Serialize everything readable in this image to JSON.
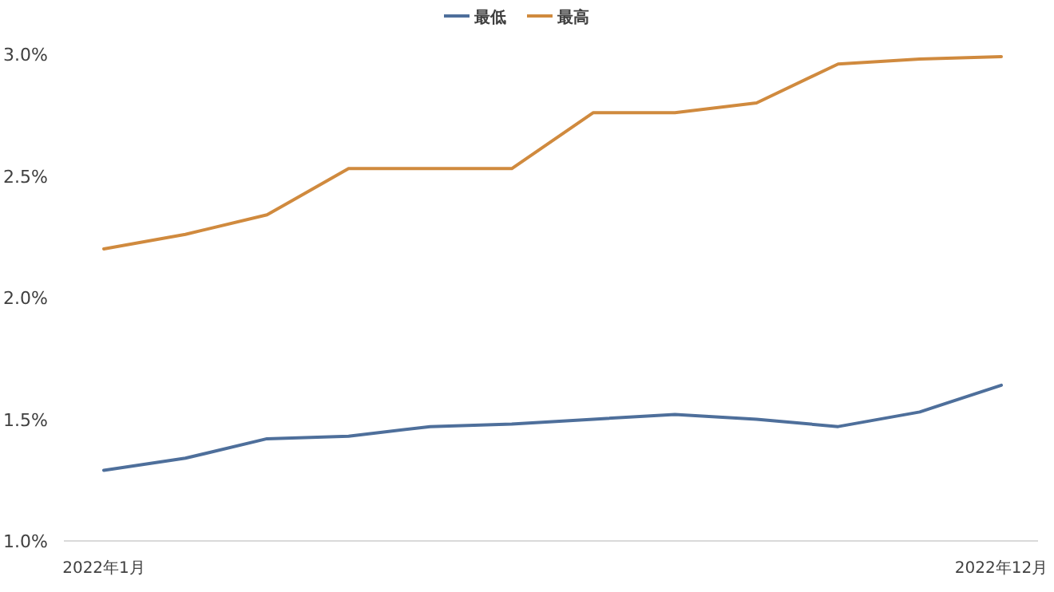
{
  "chart_data": {
    "type": "line",
    "categories": [
      "2022年1月",
      null,
      null,
      null,
      null,
      null,
      null,
      null,
      null,
      null,
      null,
      "2022年12月"
    ],
    "series": [
      {
        "name": "最低",
        "color": "#4e6f9b",
        "values": [
          1.29,
          1.34,
          1.42,
          1.43,
          1.47,
          1.48,
          1.5,
          1.52,
          1.5,
          1.47,
          1.53,
          1.64
        ]
      },
      {
        "name": "最高",
        "color": "#d08a3e",
        "values": [
          2.2,
          2.26,
          2.34,
          2.53,
          2.53,
          2.53,
          2.76,
          2.76,
          2.8,
          2.96,
          2.98,
          2.99
        ]
      }
    ],
    "ylim": [
      1.0,
      3.0
    ],
    "yticks": [
      {
        "value": 1.0,
        "label": "1.0%"
      },
      {
        "value": 1.5,
        "label": "1.5%"
      },
      {
        "value": 2.0,
        "label": "2.0%"
      },
      {
        "value": 2.5,
        "label": "2.5%"
      },
      {
        "value": 3.0,
        "label": "3.0%"
      }
    ],
    "legend": "top",
    "grid": false,
    "marker": "none",
    "line_style": "solid"
  }
}
